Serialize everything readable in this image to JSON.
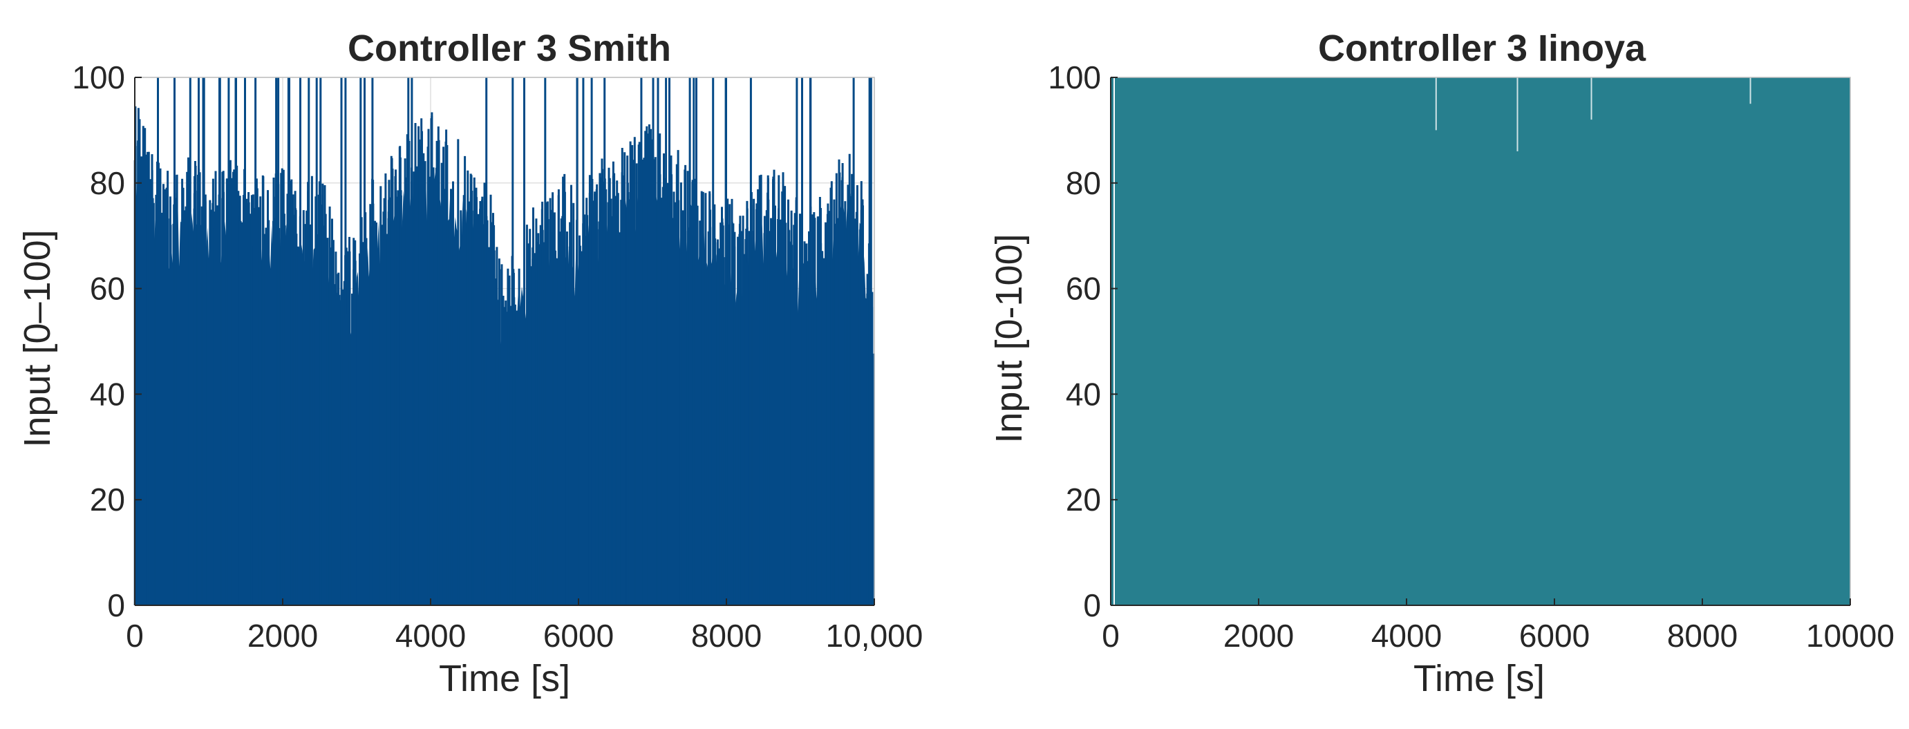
{
  "chart_data": [
    {
      "type": "line",
      "title": "Controller 3 Smith",
      "xlabel": "Time [s]",
      "ylabel": "Input [0–100]",
      "xlim": [
        0,
        10000
      ],
      "ylim": [
        0,
        100
      ],
      "xticks": [
        0,
        2000,
        4000,
        6000,
        8000,
        10000
      ],
      "xtick_labels": [
        "0",
        "2000",
        "4000",
        "6000",
        "8000",
        "10,000"
      ],
      "yticks": [
        0,
        20,
        40,
        60,
        80,
        100
      ],
      "ytick_labels": [
        "0",
        "20",
        "40",
        "60",
        "80",
        "100"
      ],
      "grid": true,
      "color": "#044a87",
      "series": [
        {
          "description": "Rapidly oscillating control input; lower envelope near 0, upper envelope (peaks) shown below",
          "x": [
            0,
            200,
            400,
            600,
            800,
            1000,
            1200,
            1400,
            1600,
            1800,
            2000,
            2200,
            2400,
            2600,
            2800,
            3000,
            3200,
            3400,
            3600,
            3800,
            4000,
            4200,
            4400,
            4600,
            4800,
            5000,
            5200,
            5400,
            5600,
            5800,
            6000,
            6200,
            6400,
            6600,
            6800,
            7000,
            7200,
            7400,
            7600,
            7800,
            8000,
            8200,
            8400,
            8600,
            8800,
            9000,
            9200,
            9400,
            9600,
            9800,
            10000
          ],
          "y": [
            88,
            78,
            74,
            76,
            75,
            73,
            76,
            74,
            72,
            73,
            74,
            71,
            72,
            70,
            55,
            66,
            72,
            74,
            78,
            82,
            84,
            82,
            78,
            74,
            70,
            52,
            62,
            66,
            68,
            72,
            70,
            74,
            76,
            78,
            80,
            82,
            78,
            76,
            72,
            70,
            68,
            66,
            72,
            74,
            72,
            66,
            68,
            70,
            78,
            76,
            50
          ]
        }
      ]
    },
    {
      "type": "line",
      "title": "Controller 3 Iinoya",
      "xlabel": "Time [s]",
      "ylabel": "Input [0-100]",
      "xlim": [
        0,
        10000
      ],
      "ylim": [
        0,
        100
      ],
      "xticks": [
        0,
        2000,
        4000,
        6000,
        8000,
        10000
      ],
      "xtick_labels": [
        "0",
        "2000",
        "4000",
        "6000",
        "8000",
        "10000"
      ],
      "yticks": [
        0,
        20,
        40,
        60,
        80,
        100
      ],
      "ytick_labels": [
        "0",
        "20",
        "40",
        "60",
        "80",
        "100"
      ],
      "grid": false,
      "color": "#277f8e",
      "series": [
        {
          "description": "Bang-bang control input oscillating between 0 and 100 across the full time range",
          "x": [
            0,
            10000
          ],
          "y_min": [
            0,
            0
          ],
          "y_max": [
            100,
            100
          ]
        }
      ]
    }
  ]
}
